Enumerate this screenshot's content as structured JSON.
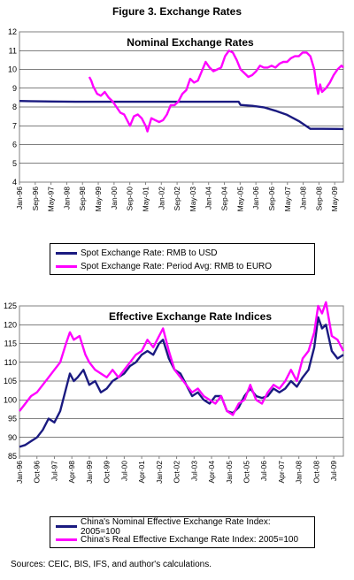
{
  "figure_title": "Figure 3. Exchange Rates",
  "sources": "Sources: CEIC, BIS, IFS, and author's calculations.",
  "colors": {
    "navy": "#1a1a80",
    "magenta": "#ff00ff"
  },
  "chart_data": [
    {
      "type": "line",
      "title": "Nominal Exchange Rates",
      "grid": true,
      "legend": "bottom",
      "ylim": [
        4,
        12
      ],
      "yticks": [
        "4",
        "5",
        "6",
        "7",
        "8",
        "9",
        "10",
        "11",
        "12"
      ],
      "xticks": [
        "Jan-96",
        "Sep-96",
        "May-97",
        "Jan-98",
        "Sep-98",
        "May-99",
        "Jan-00",
        "Sep-00",
        "May-01",
        "Jan-02",
        "Sep-02",
        "May-03",
        "Jan-04",
        "Sep-04",
        "May-05",
        "Jan-06",
        "Sep-06",
        "May-07",
        "Jan-08",
        "Sep-08",
        "May-09"
      ],
      "xrange": [
        "1996-01",
        "2009-12"
      ],
      "series": [
        {
          "name": "Spot Exchange Rate: RMB to USD",
          "color": "#1a1a80",
          "points": [
            [
              "1996-01",
              8.32
            ],
            [
              "1996-06",
              8.31
            ],
            [
              "1997-06",
              8.29
            ],
            [
              "1998-06",
              8.28
            ],
            [
              "2000-01",
              8.28
            ],
            [
              "2004-01",
              8.28
            ],
            [
              "2005-06",
              8.28
            ],
            [
              "2005-07",
              8.11
            ],
            [
              "2006-01",
              8.06
            ],
            [
              "2006-07",
              7.98
            ],
            [
              "2007-01",
              7.8
            ],
            [
              "2007-07",
              7.58
            ],
            [
              "2008-01",
              7.25
            ],
            [
              "2008-07",
              6.84
            ],
            [
              "2009-01",
              6.84
            ],
            [
              "2009-12",
              6.83
            ]
          ]
        },
        {
          "name": "Spot Exchange Rate: Period Avg: RMB to EURO",
          "color": "#ff00ff",
          "points": [
            [
              "1999-01",
              9.6
            ],
            [
              "1999-02",
              9.4
            ],
            [
              "1999-03",
              9.1
            ],
            [
              "1999-05",
              8.7
            ],
            [
              "1999-07",
              8.6
            ],
            [
              "1999-09",
              8.8
            ],
            [
              "1999-11",
              8.5
            ],
            [
              "2000-01",
              8.3
            ],
            [
              "2000-03",
              8.0
            ],
            [
              "2000-05",
              7.7
            ],
            [
              "2000-07",
              7.6
            ],
            [
              "2000-09",
              7.2
            ],
            [
              "2000-10",
              7.0
            ],
            [
              "2000-12",
              7.5
            ],
            [
              "2001-02",
              7.6
            ],
            [
              "2001-04",
              7.4
            ],
            [
              "2001-06",
              7.0
            ],
            [
              "2001-07",
              6.7
            ],
            [
              "2001-09",
              7.4
            ],
            [
              "2001-11",
              7.3
            ],
            [
              "2002-01",
              7.2
            ],
            [
              "2002-03",
              7.3
            ],
            [
              "2002-05",
              7.6
            ],
            [
              "2002-07",
              8.1
            ],
            [
              "2002-09",
              8.1
            ],
            [
              "2002-11",
              8.3
            ],
            [
              "2003-01",
              8.7
            ],
            [
              "2003-03",
              8.9
            ],
            [
              "2003-05",
              9.5
            ],
            [
              "2003-07",
              9.3
            ],
            [
              "2003-09",
              9.4
            ],
            [
              "2003-11",
              9.9
            ],
            [
              "2004-01",
              10.4
            ],
            [
              "2004-03",
              10.1
            ],
            [
              "2004-05",
              9.9
            ],
            [
              "2004-07",
              10.0
            ],
            [
              "2004-09",
              10.1
            ],
            [
              "2004-11",
              10.7
            ],
            [
              "2005-01",
              11.0
            ],
            [
              "2005-03",
              10.9
            ],
            [
              "2005-05",
              10.5
            ],
            [
              "2005-07",
              10.0
            ],
            [
              "2005-09",
              9.8
            ],
            [
              "2005-11",
              9.6
            ],
            [
              "2006-01",
              9.7
            ],
            [
              "2006-03",
              9.9
            ],
            [
              "2006-05",
              10.2
            ],
            [
              "2006-07",
              10.1
            ],
            [
              "2006-09",
              10.1
            ],
            [
              "2006-11",
              10.2
            ],
            [
              "2007-01",
              10.1
            ],
            [
              "2007-03",
              10.3
            ],
            [
              "2007-05",
              10.4
            ],
            [
              "2007-07",
              10.4
            ],
            [
              "2007-09",
              10.6
            ],
            [
              "2007-11",
              10.7
            ],
            [
              "2008-01",
              10.7
            ],
            [
              "2008-03",
              10.9
            ],
            [
              "2008-05",
              10.9
            ],
            [
              "2008-07",
              10.7
            ],
            [
              "2008-09",
              10.0
            ],
            [
              "2008-10",
              9.2
            ],
            [
              "2008-11",
              8.7
            ],
            [
              "2008-12",
              9.2
            ],
            [
              "2009-01",
              8.8
            ],
            [
              "2009-03",
              9.0
            ],
            [
              "2009-05",
              9.3
            ],
            [
              "2009-07",
              9.7
            ],
            [
              "2009-09",
              10.0
            ],
            [
              "2009-11",
              10.2
            ],
            [
              "2009-12",
              10.1
            ]
          ]
        }
      ]
    },
    {
      "type": "line",
      "title": "Effective Exchange Rate Indices",
      "grid": true,
      "legend": "bottom",
      "ylim": [
        85,
        125
      ],
      "yticks": [
        "85",
        "90",
        "95",
        "100",
        "105",
        "110",
        "115",
        "120",
        "125"
      ],
      "xticks": [
        "Jan-96",
        "Oct-96",
        "Jul-97",
        "Apr-98",
        "Jan-99",
        "Oct-99",
        "Jul-00",
        "Apr-01",
        "Jan-02",
        "Oct-02",
        "Jul-03",
        "Apr-04",
        "Jan-05",
        "Oct-05",
        "Jul-06",
        "Apr-07",
        "Jan-08",
        "Oct-08",
        "Jul-09"
      ],
      "xrange": [
        "1996-01",
        "2009-12"
      ],
      "series": [
        {
          "name": "China's Nominal Effective Exchange Rate Index: 2005=100",
          "color": "#1a1a80",
          "points": [
            [
              "1996-01",
              87.5
            ],
            [
              "1996-04",
              88
            ],
            [
              "1996-07",
              89
            ],
            [
              "1996-10",
              90
            ],
            [
              "1997-01",
              92
            ],
            [
              "1997-04",
              95
            ],
            [
              "1997-07",
              94
            ],
            [
              "1997-10",
              97
            ],
            [
              "1998-01",
              103
            ],
            [
              "1998-03",
              107
            ],
            [
              "1998-05",
              105
            ],
            [
              "1998-07",
              106
            ],
            [
              "1998-10",
              108
            ],
            [
              "1999-01",
              104
            ],
            [
              "1999-04",
              105
            ],
            [
              "1999-07",
              102
            ],
            [
              "1999-10",
              103
            ],
            [
              "2000-01",
              105
            ],
            [
              "2000-04",
              106
            ],
            [
              "2000-07",
              107
            ],
            [
              "2000-10",
              109
            ],
            [
              "2001-01",
              110
            ],
            [
              "2001-04",
              112
            ],
            [
              "2001-07",
              113
            ],
            [
              "2001-10",
              112
            ],
            [
              "2002-01",
              115
            ],
            [
              "2002-03",
              116
            ],
            [
              "2002-06",
              111
            ],
            [
              "2002-09",
              108
            ],
            [
              "2002-12",
              107
            ],
            [
              "2003-03",
              104
            ],
            [
              "2003-06",
              101
            ],
            [
              "2003-09",
              102
            ],
            [
              "2003-12",
              100
            ],
            [
              "2004-03",
              99
            ],
            [
              "2004-06",
              101
            ],
            [
              "2004-09",
              101
            ],
            [
              "2004-12",
              97
            ],
            [
              "2005-03",
              96.5
            ],
            [
              "2005-06",
              98
            ],
            [
              "2005-09",
              101
            ],
            [
              "2005-12",
              103
            ],
            [
              "2006-03",
              101
            ],
            [
              "2006-06",
              100.5
            ],
            [
              "2006-09",
              101
            ],
            [
              "2006-12",
              103
            ],
            [
              "2007-03",
              102
            ],
            [
              "2007-06",
              103
            ],
            [
              "2007-09",
              105
            ],
            [
              "2007-12",
              103.5
            ],
            [
              "2008-03",
              106
            ],
            [
              "2008-06",
              108
            ],
            [
              "2008-09",
              114
            ],
            [
              "2008-11",
              122
            ],
            [
              "2009-01",
              119
            ],
            [
              "2009-03",
              120
            ],
            [
              "2009-06",
              113
            ],
            [
              "2009-09",
              111
            ],
            [
              "2009-12",
              112
            ]
          ]
        },
        {
          "name": "China's Real Effective Exchange Rate Index: 2005=100",
          "color": "#ff00ff",
          "points": [
            [
              "1996-01",
              97
            ],
            [
              "1996-04",
              99
            ],
            [
              "1996-07",
              101
            ],
            [
              "1996-10",
              102
            ],
            [
              "1997-01",
              104
            ],
            [
              "1997-04",
              106
            ],
            [
              "1997-07",
              108
            ],
            [
              "1997-10",
              110
            ],
            [
              "1998-01",
              115
            ],
            [
              "1998-03",
              118
            ],
            [
              "1998-05",
              116
            ],
            [
              "1998-08",
              117
            ],
            [
              "1998-11",
              112
            ],
            [
              "1999-01",
              110
            ],
            [
              "1999-04",
              108
            ],
            [
              "1999-07",
              107
            ],
            [
              "1999-10",
              106
            ],
            [
              "2000-01",
              108
            ],
            [
              "2000-04",
              106
            ],
            [
              "2000-07",
              108
            ],
            [
              "2000-10",
              110
            ],
            [
              "2001-01",
              112
            ],
            [
              "2001-04",
              113
            ],
            [
              "2001-07",
              116
            ],
            [
              "2001-10",
              114
            ],
            [
              "2002-01",
              117
            ],
            [
              "2002-03",
              119
            ],
            [
              "2002-06",
              113
            ],
            [
              "2002-09",
              108
            ],
            [
              "2002-12",
              106
            ],
            [
              "2003-03",
              104
            ],
            [
              "2003-06",
              102
            ],
            [
              "2003-09",
              103
            ],
            [
              "2003-12",
              101
            ],
            [
              "2004-03",
              100
            ],
            [
              "2004-06",
              99
            ],
            [
              "2004-09",
              101
            ],
            [
              "2004-12",
              97
            ],
            [
              "2005-03",
              96
            ],
            [
              "2005-06",
              99
            ],
            [
              "2005-09",
              100
            ],
            [
              "2005-12",
              104
            ],
            [
              "2006-03",
              100
            ],
            [
              "2006-06",
              99
            ],
            [
              "2006-09",
              102
            ],
            [
              "2006-12",
              104
            ],
            [
              "2007-03",
              103
            ],
            [
              "2007-06",
              105
            ],
            [
              "2007-09",
              108
            ],
            [
              "2007-12",
              105
            ],
            [
              "2008-03",
              111
            ],
            [
              "2008-06",
              113
            ],
            [
              "2008-09",
              118
            ],
            [
              "2008-11",
              125
            ],
            [
              "2009-01",
              123
            ],
            [
              "2009-03",
              126
            ],
            [
              "2009-06",
              117
            ],
            [
              "2009-09",
              116
            ],
            [
              "2009-12",
              113
            ]
          ]
        }
      ]
    }
  ]
}
